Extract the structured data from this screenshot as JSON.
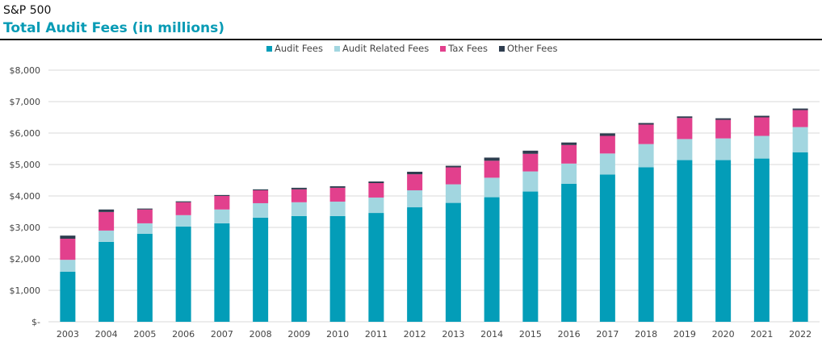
{
  "header": {
    "subtitle": "S&P 500",
    "title": "Total Audit Fees (in millions)"
  },
  "chart_data": {
    "type": "bar",
    "stacked": true,
    "title": "Total Audit Fees (in millions)",
    "xlabel": "",
    "ylabel": "",
    "ylim": [
      0,
      8000
    ],
    "grid": true,
    "legend_position": "top",
    "y_ticks": [
      "$-",
      "$1,000",
      "$2,000",
      "$3,000",
      "$4,000",
      "$5,000",
      "$6,000",
      "$7,000",
      "$8,000"
    ],
    "categories": [
      "2003",
      "2004",
      "2005",
      "2006",
      "2007",
      "2008",
      "2009",
      "2010",
      "2011",
      "2012",
      "2013",
      "2014",
      "2015",
      "2016",
      "2017",
      "2018",
      "2019",
      "2020",
      "2021",
      "2022"
    ],
    "series": [
      {
        "name": "Audit Fees",
        "color": "#039db8",
        "values": [
          1590,
          2540,
          2800,
          3030,
          3130,
          3310,
          3360,
          3360,
          3460,
          3640,
          3780,
          3960,
          4140,
          4390,
          4680,
          4910,
          5140,
          5140,
          5190,
          5390
        ]
      },
      {
        "name": "Audit Related Fees",
        "color": "#a2d6e0",
        "values": [
          380,
          360,
          330,
          360,
          440,
          460,
          440,
          460,
          490,
          540,
          590,
          620,
          640,
          640,
          670,
          740,
          670,
          690,
          720,
          800
        ]
      },
      {
        "name": "Tax Fees",
        "color": "#e2408d",
        "values": [
          670,
          590,
          440,
          410,
          430,
          410,
          410,
          440,
          460,
          510,
          540,
          540,
          560,
          590,
          560,
          620,
          670,
          590,
          590,
          540
        ]
      },
      {
        "name": "Other Fees",
        "color": "#2e3d4f",
        "values": [
          100,
          80,
          30,
          30,
          30,
          30,
          50,
          50,
          50,
          80,
          50,
          100,
          100,
          80,
          80,
          50,
          50,
          50,
          50,
          50
        ]
      }
    ]
  }
}
